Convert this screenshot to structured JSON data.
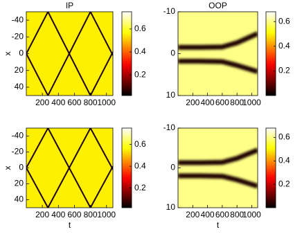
{
  "chart_data": [
    {
      "type": "heatmap",
      "title": "IP",
      "ylabel": "x",
      "colormap": "hot",
      "background_value": 0.55,
      "y_reversed": true,
      "xlim": [
        0,
        1080
      ],
      "ylim": [
        -50,
        50
      ],
      "xticks": [
        200,
        400,
        600,
        800,
        1000
      ],
      "yticks": [
        -40,
        -20,
        0,
        20,
        40
      ],
      "colorbar": {
        "lim": [
          0.02,
          0.75
        ],
        "ticks": [
          0.2,
          0.4,
          0.6
        ]
      },
      "traces": [
        {
          "value": 0.05,
          "x": [
            0,
            270,
            800,
            1080
          ],
          "y": [
            0,
            -50,
            50,
            -2
          ]
        },
        {
          "value": 0.05,
          "x": [
            0,
            270,
            800,
            1080
          ],
          "y": [
            0,
            50,
            -50,
            2
          ]
        }
      ]
    },
    {
      "type": "heatmap",
      "title": "OOP",
      "colormap": "hot",
      "background_value": 0.6,
      "y_reversed": true,
      "xlim": [
        0,
        1080
      ],
      "ylim": [
        -10,
        10
      ],
      "xticks": [
        200,
        400,
        600,
        800,
        1000
      ],
      "yticks": [
        -10,
        0,
        10
      ],
      "colorbar": {
        "lim": [
          0,
          0.68
        ],
        "ticks": [
          0.2,
          0.4,
          0.6
        ]
      },
      "traces": [
        {
          "value": 0.03,
          "x": [
            0,
            300,
            600,
            800,
            1080
          ],
          "y": [
            -1.5,
            -1.5,
            -1.6,
            -2.6,
            -4.8
          ]
        },
        {
          "value": 0.03,
          "x": [
            0,
            300,
            600,
            800,
            1080
          ],
          "y": [
            1.8,
            1.8,
            1.9,
            2.8,
            4.3
          ]
        }
      ]
    },
    {
      "type": "heatmap",
      "xlabel": "t",
      "ylabel": "x",
      "colormap": "hot",
      "background_value": 0.55,
      "y_reversed": true,
      "xlim": [
        0,
        1080
      ],
      "ylim": [
        -50,
        50
      ],
      "xticks": [
        200,
        400,
        600,
        800,
        1000
      ],
      "yticks": [
        -40,
        -20,
        0,
        20,
        40
      ],
      "colorbar": {
        "lim": [
          0.02,
          0.75
        ],
        "ticks": [
          0.2,
          0.4,
          0.6
        ]
      },
      "traces": [
        {
          "value": 0.05,
          "x": [
            0,
            270,
            800,
            1080
          ],
          "y": [
            0,
            -50,
            50,
            -2
          ]
        },
        {
          "value": 0.05,
          "x": [
            0,
            270,
            800,
            1080
          ],
          "y": [
            0,
            50,
            -50,
            2
          ]
        }
      ]
    },
    {
      "type": "heatmap",
      "xlabel": "t",
      "colormap": "hot",
      "background_value": 0.6,
      "y_reversed": true,
      "xlim": [
        0,
        1080
      ],
      "ylim": [
        -10,
        10
      ],
      "xticks": [
        200,
        400,
        600,
        800,
        1000
      ],
      "yticks": [
        -10,
        0,
        10
      ],
      "colorbar": {
        "lim": [
          0,
          0.68
        ],
        "ticks": [
          0.2,
          0.4,
          0.6
        ]
      },
      "traces": [
        {
          "value": 0.03,
          "x": [
            0,
            300,
            600,
            800,
            1080
          ],
          "y": [
            -1.3,
            -1.3,
            -1.4,
            -2.4,
            -4.5
          ]
        },
        {
          "value": 0.03,
          "x": [
            0,
            300,
            600,
            800,
            1080
          ],
          "y": [
            2.0,
            2.0,
            2.1,
            3.0,
            4.6
          ]
        }
      ]
    }
  ]
}
